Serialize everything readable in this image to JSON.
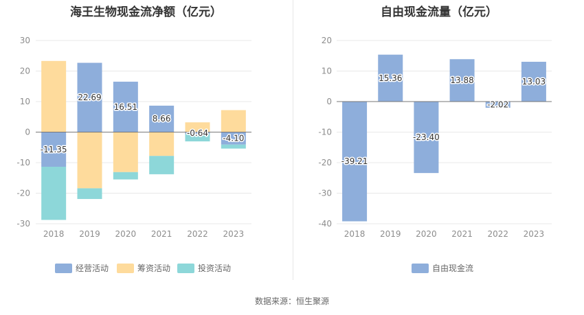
{
  "source_label": "数据来源：恒生聚源",
  "chart_data": [
    {
      "type": "bar",
      "stacked": true,
      "title": "海王生物现金流净额（亿元）",
      "categories": [
        "2018",
        "2019",
        "2020",
        "2021",
        "2022",
        "2023"
      ],
      "ylim": [
        -30,
        30
      ],
      "yticks": [
        30,
        20,
        10,
        0,
        -10,
        -20,
        -30
      ],
      "grid": true,
      "legend_position": "bottom",
      "series": [
        {
          "name": "经营活动",
          "color": "#8eaedb",
          "values": [
            -11.35,
            22.69,
            16.51,
            8.66,
            -0.64,
            -4.1
          ],
          "labels": [
            "-11.35",
            "22.69",
            "16.51",
            "8.66",
            "-0.64",
            "-4.10"
          ]
        },
        {
          "name": "筹资活动",
          "color": "#fedb9c",
          "values": [
            23.3,
            -18.4,
            -13.1,
            -7.8,
            3.2,
            7.2
          ]
        },
        {
          "name": "投资活动",
          "color": "#8dd7d9",
          "values": [
            -17.4,
            -3.5,
            -2.4,
            -6.0,
            -2.4,
            -1.3
          ]
        }
      ]
    },
    {
      "type": "bar",
      "title": "自由现金流量（亿元）",
      "categories": [
        "2018",
        "2019",
        "2020",
        "2021",
        "2022",
        "2023"
      ],
      "ylim": [
        -40,
        20
      ],
      "yticks": [
        20,
        10,
        0,
        -10,
        -20,
        -30,
        -40
      ],
      "grid": true,
      "legend_position": "bottom",
      "series": [
        {
          "name": "自由现金流",
          "color": "#8eaedb",
          "values": [
            -39.21,
            15.36,
            -23.4,
            13.88,
            -2.02,
            13.03
          ],
          "labels": [
            "-39.21",
            "15.36",
            "-23.40",
            "13.88",
            "-2.02",
            "13.03"
          ]
        }
      ]
    }
  ]
}
